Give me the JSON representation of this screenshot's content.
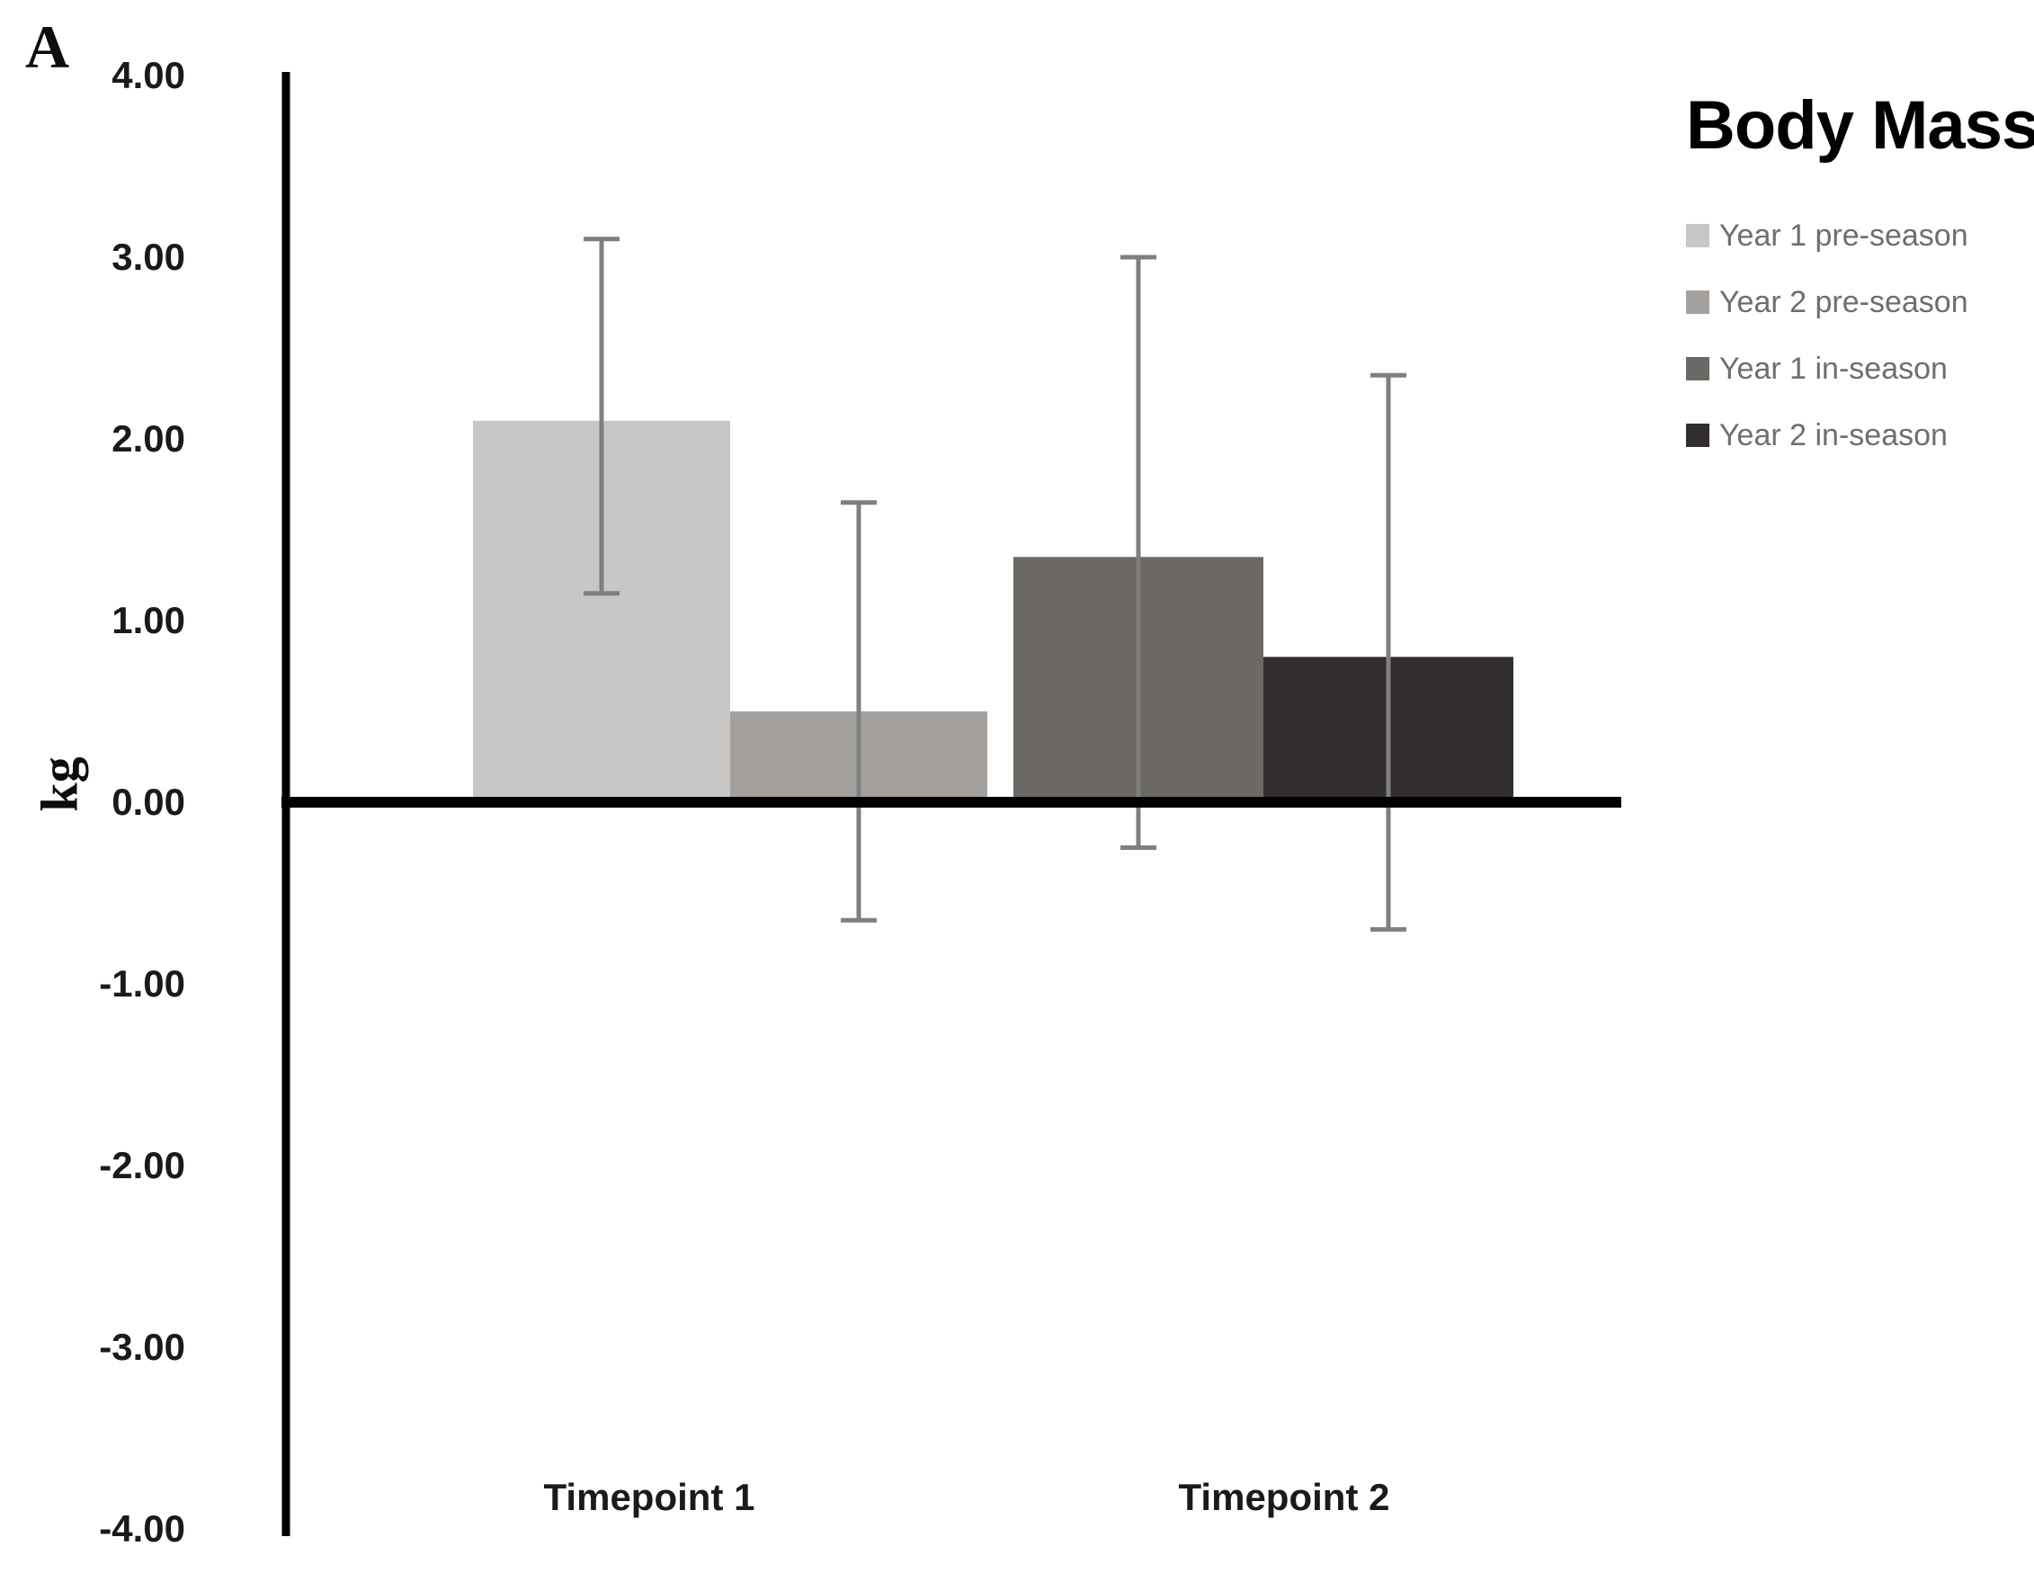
{
  "chart_data": {
    "type": "bar",
    "title": "Body Mass",
    "panel_label": "A",
    "ylabel": "kg",
    "ylim": [
      -4.0,
      4.0
    ],
    "ytick_labels": [
      "4.00",
      "3.00",
      "2.00",
      "1.00",
      "0.00",
      "-1.00",
      "-2.00",
      "-3.00",
      "-4.00"
    ],
    "categories": [
      "Timepoint 1",
      "Timepoint 2"
    ],
    "grid": false,
    "legend_position": "right",
    "error_bar_color": "#7f7f7f",
    "series": [
      {
        "name": "Year 1 pre-season",
        "category": "Timepoint 1",
        "value": 2.1,
        "error_low": 1.15,
        "error_high": 3.1,
        "color": "#c9c7c5"
      },
      {
        "name": "Year 2 pre-season",
        "category": "Timepoint 1",
        "value": 0.5,
        "error_low": -0.65,
        "error_high": 1.65,
        "color": "#a3a09e"
      },
      {
        "name": "Year 1 in-season",
        "category": "Timepoint 2",
        "value": 1.35,
        "error_low": -0.25,
        "error_high": 3.0,
        "color": "#6b6865"
      },
      {
        "name": "Year 2 in-season",
        "category": "Timepoint 2",
        "value": 0.8,
        "error_low": -0.7,
        "error_high": 2.35,
        "color": "#312e2d"
      }
    ]
  }
}
